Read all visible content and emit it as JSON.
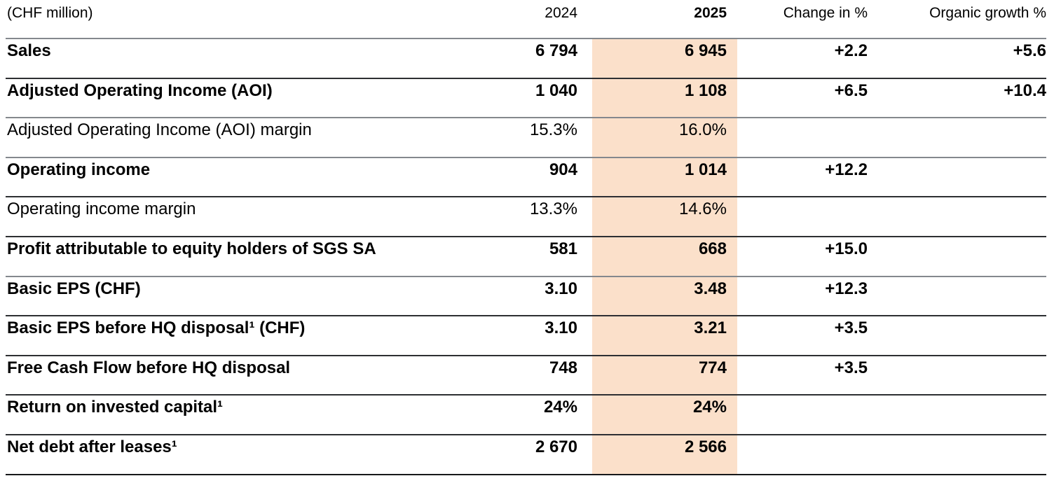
{
  "table": {
    "unit_label": "(CHF million)",
    "columns": {
      "col_2024": "2024",
      "col_2025": "2025",
      "col_change": "Change in %",
      "col_organic": "Organic growth %"
    },
    "highlight_color": "#fbe0ca",
    "rows": [
      {
        "label": "Sales",
        "v2024": "6 794",
        "v2025": "6 945",
        "change": "+2.2",
        "organic": "+5.6"
      },
      {
        "label": "Adjusted Operating Income (AOI)",
        "v2024": "1 040",
        "v2025": "1 108",
        "change": "+6.5",
        "organic": "+10.4"
      },
      {
        "label": "Adjusted Operating Income (AOI) margin",
        "v2024": "15.3%",
        "v2025": "16.0%",
        "change": "",
        "organic": ""
      },
      {
        "label": "Operating income",
        "v2024": "904",
        "v2025": "1 014",
        "change": "+12.2",
        "organic": ""
      },
      {
        "label": "Operating income margin",
        "v2024": "13.3%",
        "v2025": "14.6%",
        "change": "",
        "organic": ""
      },
      {
        "label": "Profit attributable to equity holders of SGS SA",
        "v2024": "581",
        "v2025": "668",
        "change": "+15.0",
        "organic": ""
      },
      {
        "label": "Basic EPS (CHF)",
        "v2024": "3.10",
        "v2025": "3.48",
        "change": "+12.3",
        "organic": ""
      },
      {
        "label": "Basic EPS before HQ disposal¹ (CHF)",
        "v2024": "3.10",
        "v2025": "3.21",
        "change": "+3.5",
        "organic": ""
      },
      {
        "label": "Free Cash Flow before HQ disposal",
        "v2024": "748",
        "v2025": "774",
        "change": "+3.5",
        "organic": ""
      },
      {
        "label": "Return on invested capital¹",
        "v2024": "24%",
        "v2025": "24%",
        "change": "",
        "organic": ""
      },
      {
        "label": "Net debt after leases¹",
        "v2024": "2 670",
        "v2025": "2 566",
        "change": "",
        "organic": ""
      }
    ]
  }
}
